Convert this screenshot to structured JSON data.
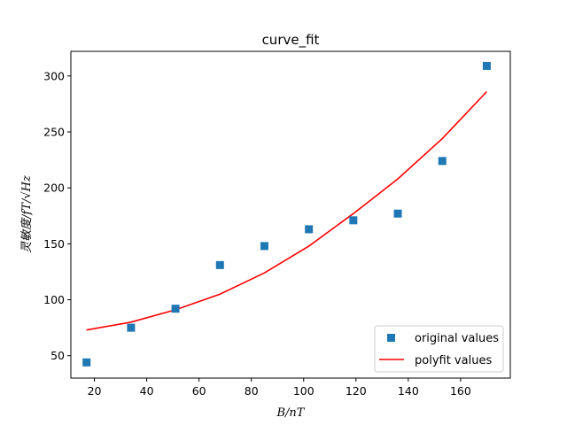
{
  "chart_data": {
    "type": "scatter",
    "title": "curve_fit",
    "xlabel": "B/nT",
    "ylabel": "灵敏度/fT/√Hz",
    "xlim": [
      11,
      179
    ],
    "ylim": [
      30,
      322
    ],
    "xticks": [
      20,
      40,
      60,
      80,
      100,
      120,
      140,
      160
    ],
    "yticks": [
      50,
      100,
      150,
      200,
      250,
      300
    ],
    "grid": false,
    "legend_position": "lower-right",
    "series": [
      {
        "name": "original values",
        "type": "scatter",
        "marker": "square",
        "color": "#1f77b4",
        "x": [
          17,
          34,
          51,
          68,
          85,
          102,
          119,
          136,
          153,
          170
        ],
        "y": [
          44,
          75,
          92,
          131,
          148,
          163,
          171,
          177,
          224,
          309
        ]
      },
      {
        "name": "polyfit values",
        "type": "line",
        "color": "#ff0000",
        "x": [
          17,
          34,
          51,
          68,
          85,
          102,
          119,
          136,
          153,
          170
        ],
        "y": [
          73,
          80,
          91,
          105,
          124,
          148,
          177,
          208,
          244,
          286
        ]
      }
    ]
  }
}
